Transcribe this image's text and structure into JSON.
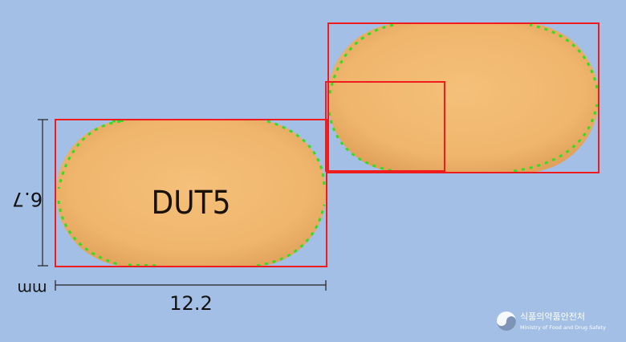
{
  "imprint": "DUT5",
  "height_label": "6.7",
  "width_label": "12.2",
  "unit_label": "mm",
  "logo": {
    "korean": "식품의약품안전처",
    "english": "Ministry of Food and Drug Safety"
  },
  "colors": {
    "background": "#a3bfe6",
    "pill": "#f0b872",
    "bounding_box": "#ee1c1c",
    "edge_dots": "#33dd22"
  }
}
